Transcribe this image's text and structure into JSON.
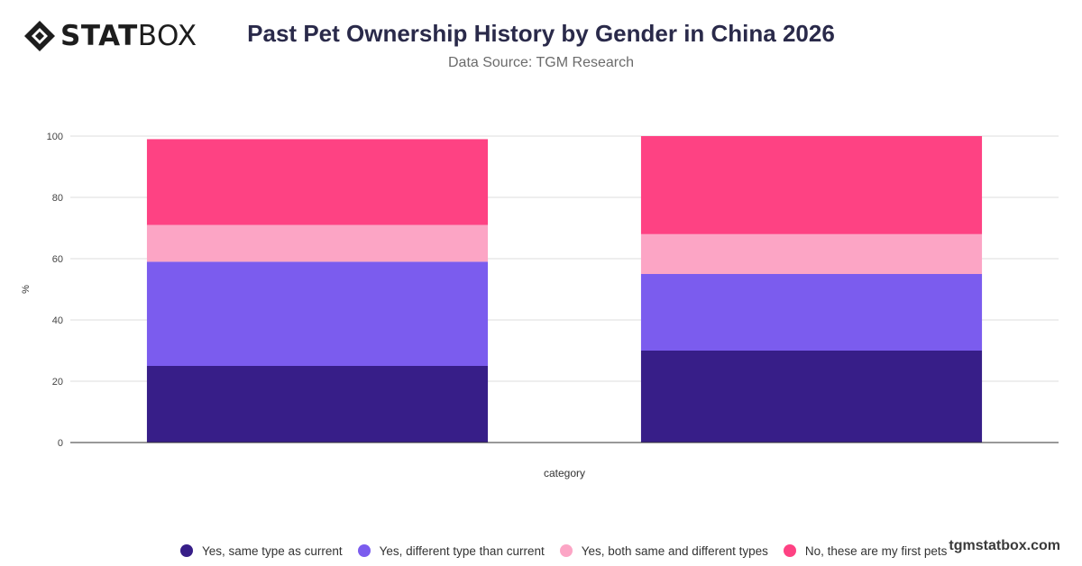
{
  "header": {
    "logo_bold": "STAT",
    "logo_light": "BOX",
    "title": "Past Pet Ownership History by Gender in China 2026",
    "subtitle": "Data Source: TGM Research"
  },
  "footer": {
    "brand": "tgmstatbox.com"
  },
  "colors": {
    "series_1": "#371E88",
    "series_2": "#7B5CEE",
    "series_3": "#FCA5C5",
    "series_4": "#FE4283"
  },
  "chart_data": {
    "type": "bar",
    "stacked": true,
    "xlabel": "category",
    "ylabel": "%",
    "ylim": [
      0,
      100
    ],
    "yticks": [
      0,
      20,
      40,
      60,
      80,
      100
    ],
    "categories": [
      "",
      ""
    ],
    "series": [
      {
        "name": "Yes, same type as current",
        "values": [
          25,
          30
        ],
        "color": "#371E88"
      },
      {
        "name": "Yes, different type than current",
        "values": [
          34,
          25
        ],
        "color": "#7B5CEE"
      },
      {
        "name": "Yes, both same and different types",
        "values": [
          12,
          13
        ],
        "color": "#FCA5C5"
      },
      {
        "name": "No, these are my first pets",
        "values": [
          28,
          32
        ],
        "color": "#FE4283"
      }
    ],
    "grid": true,
    "legend_position": "bottom"
  }
}
